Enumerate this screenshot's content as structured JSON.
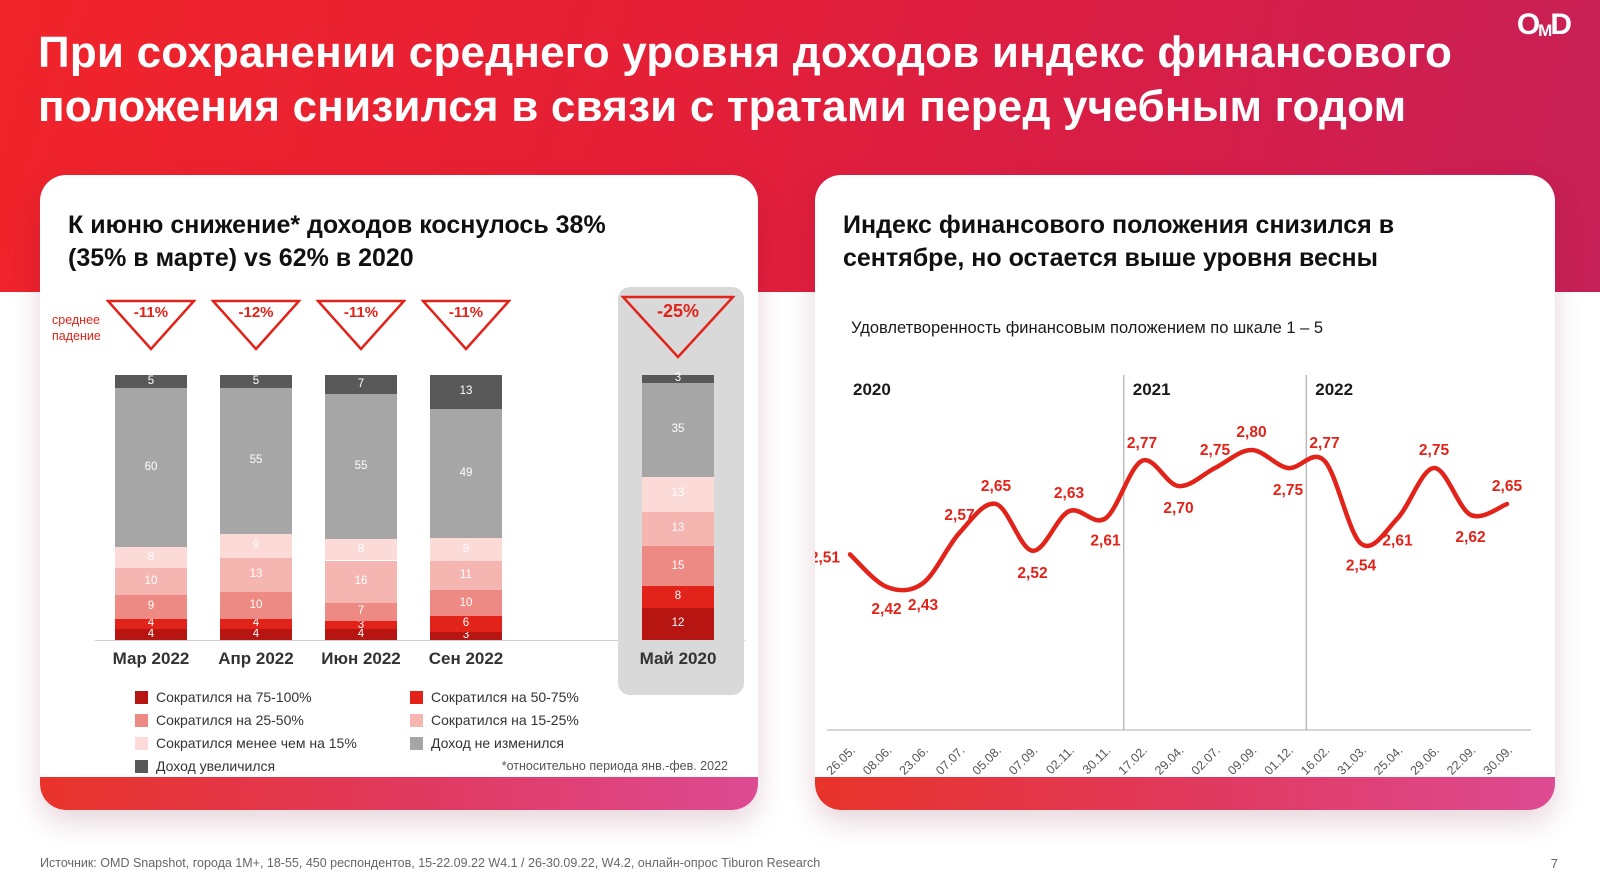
{
  "header": {
    "title_lines": [
      "При сохранении среднего уровня доходов индекс финансового",
      "положения снизился в связи с тратами перед учебным годом"
    ],
    "logo_letters": [
      "O",
      "M",
      "D"
    ],
    "accent_color": "#e2231a"
  },
  "footer": {
    "source": "Источник: OMD Snapshot, города 1M+, 18-55, 450 респондентов, 15-22.09.22 W4.1 / 26-30.09.22, W4.2, онлайн-опрос Tiburon Research",
    "page_number": "7"
  },
  "left_card": {
    "title_lines": [
      "К июню снижение* доходов коснулось 38%",
      "(35% в марте) vs 62% в 2020"
    ],
    "avg_drop_label": "среднее падение",
    "footnote": "*относительно периода янв.-фев. 2022"
  },
  "right_card": {
    "title_lines": [
      "Индекс финансового положения снизился в",
      "сентябре, но остается выше уровня весны"
    ],
    "subtitle": "Удовлетворенность финансовым положением по шкале 1 – 5"
  },
  "chart_data": [
    {
      "type": "bar",
      "stacked": true,
      "title": "К июню снижение* доходов коснулось 38% (35% в марте) vs 62% в 2020",
      "categories": [
        "Мар 2022",
        "Апр 2022",
        "Июн 2022",
        "Сен 2022",
        "Май 2020"
      ],
      "avg_drop_labels": [
        "-11%",
        "-12%",
        "-11%",
        "-11%",
        "-25%"
      ],
      "highlight_index": 4,
      "ylim": [
        0,
        100
      ],
      "series": [
        {
          "name": "Сократился на 75-100%",
          "color": "#b71512",
          "values": [
            4,
            4,
            4,
            3,
            12
          ]
        },
        {
          "name": "Сократился на 50-75%",
          "color": "#e2231a",
          "values": [
            4,
            4,
            3,
            6,
            8
          ]
        },
        {
          "name": "Сократился на 25-50%",
          "color": "#ee8a84",
          "values": [
            9,
            10,
            7,
            10,
            15
          ]
        },
        {
          "name": "Сократился на 15-25%",
          "color": "#f5b6b2",
          "values": [
            10,
            13,
            16,
            11,
            13
          ]
        },
        {
          "name": "Сократился менее чем на 15%",
          "color": "#fbdad8",
          "values": [
            8,
            9,
            8,
            9,
            13
          ]
        },
        {
          "name": "Доход не изменился",
          "color": "#a6a6a6",
          "values": [
            60,
            55,
            55,
            49,
            35
          ]
        },
        {
          "name": "Доход увеличился",
          "color": "#595959",
          "values": [
            5,
            5,
            7,
            13,
            3
          ]
        }
      ],
      "legend_columns": [
        [
          0,
          2,
          4,
          6
        ],
        [
          1,
          3,
          5
        ]
      ]
    },
    {
      "type": "line",
      "title": "Индекс финансового положения снизился в сентябре, но остается выше уровня весны",
      "ylabel": "Удовлетворенность финансовым положением по шкале 1 – 5",
      "x": [
        "26.05.",
        "08.06.",
        "23.06.",
        "07.07.",
        "05.08.",
        "07.09.",
        "02.11.",
        "30.11.",
        "17.02.",
        "29.04.",
        "02.07.",
        "09.09.",
        "01.12.",
        "16.02.",
        "31.03.",
        "25.04.",
        "29.06.",
        "22.09.",
        "30.09."
      ],
      "values": [
        2.51,
        2.42,
        2.43,
        2.57,
        2.65,
        2.52,
        2.63,
        2.61,
        2.77,
        2.7,
        2.75,
        2.8,
        2.75,
        2.77,
        2.54,
        2.61,
        2.75,
        2.62,
        2.65
      ],
      "labels": [
        "2,51",
        "2,42",
        "2,43",
        "2,57",
        "2,65",
        "2,52",
        "2,63",
        "2,61",
        "2,77",
        "2,70",
        "2,75",
        "2,80",
        "2,75",
        "2,77",
        "2,54",
        "2,61",
        "2,75",
        "2,62",
        "2,65"
      ],
      "label_pos": [
        "left",
        "below",
        "below",
        "above",
        "above",
        "below",
        "above",
        "below",
        "above",
        "below",
        "above",
        "above",
        "below",
        "above",
        "below",
        "below",
        "above",
        "below",
        "above"
      ],
      "year_labels": [
        "2020",
        "2021",
        "2022"
      ],
      "dividers_between": [
        [
          7,
          8
        ],
        [
          12,
          13
        ]
      ],
      "ylim": [
        2.3,
        2.9
      ],
      "line_color": "#e2231a",
      "grid": false,
      "legend_position": "none"
    }
  ]
}
